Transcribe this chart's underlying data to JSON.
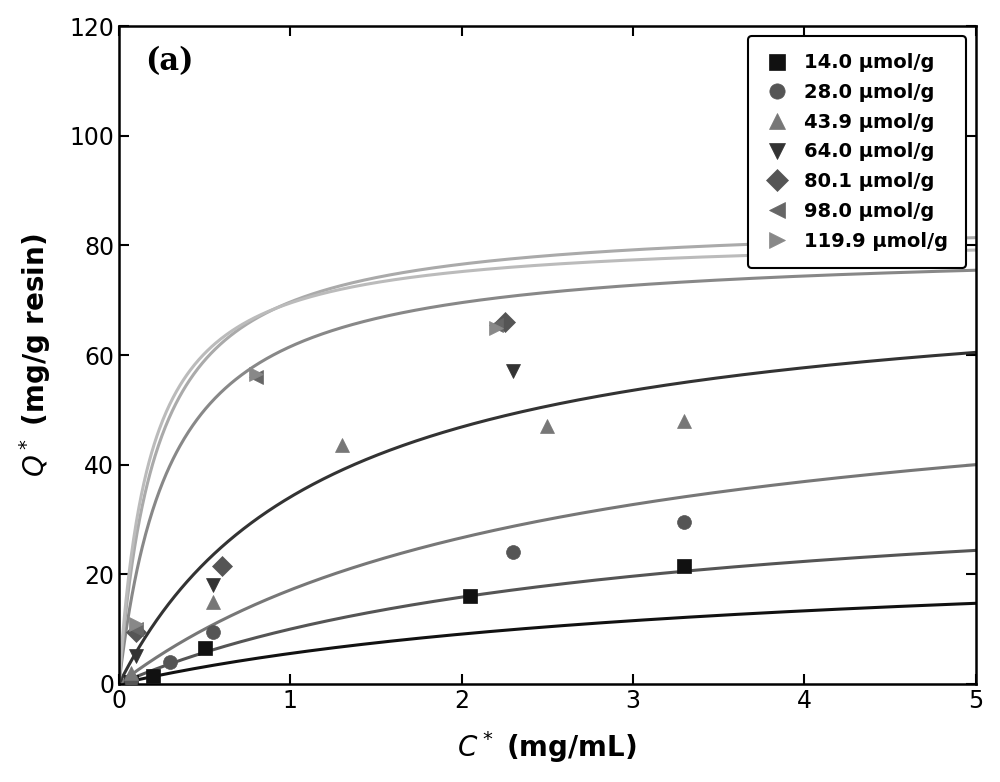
{
  "title": "(a)",
  "xlabel": "$C^*$ (mg/mL)",
  "ylabel": "$Q^*$ (mg/g resin)",
  "xlim": [
    0,
    5
  ],
  "ylim": [
    0,
    120
  ],
  "xticks": [
    0,
    1,
    2,
    3,
    4,
    5
  ],
  "yticks": [
    0,
    20,
    40,
    60,
    80,
    100,
    120
  ],
  "series": [
    {
      "label": "14.0 μmol/g",
      "marker": "s",
      "marker_color": "#111111",
      "line_color": "#111111",
      "Qmax": 25.0,
      "Kd": 3.5,
      "data_x": [
        0.07,
        0.2,
        0.5,
        2.05,
        3.3
      ],
      "data_y": [
        0.3,
        1.5,
        6.5,
        16.0,
        21.5
      ]
    },
    {
      "label": "28.0 μmol/g",
      "marker": "o",
      "marker_color": "#555555",
      "line_color": "#555555",
      "Qmax": 38.0,
      "Kd": 2.8,
      "data_x": [
        0.07,
        0.3,
        0.55,
        2.3,
        3.3
      ],
      "data_y": [
        0.8,
        4.0,
        9.5,
        24.0,
        29.5
      ]
    },
    {
      "label": "43.9 μmol/g",
      "marker": "^",
      "marker_color": "#777777",
      "line_color": "#777777",
      "Qmax": 60.0,
      "Kd": 2.5,
      "data_x": [
        0.07,
        0.55,
        1.3,
        2.5,
        3.3
      ],
      "data_y": [
        2.0,
        15.0,
        43.5,
        47.0,
        48.0
      ]
    },
    {
      "label": "64.0 μmol/g",
      "marker": "v",
      "marker_color": "#333333",
      "line_color": "#333333",
      "Qmax": 75.0,
      "Kd": 1.2,
      "data_x": [
        0.1,
        0.55,
        2.3
      ],
      "data_y": [
        5.0,
        18.0,
        57.0
      ]
    },
    {
      "label": "80.1 μmol/g",
      "marker": "D",
      "marker_color": "#555555",
      "line_color": "#888888",
      "Qmax": 80.0,
      "Kd": 0.3,
      "data_x": [
        0.1,
        0.6,
        2.25
      ],
      "data_y": [
        9.5,
        21.5,
        66.0
      ]
    },
    {
      "label": "98.0 μmol/g",
      "marker": "<",
      "marker_color": "#666666",
      "line_color": "#aaaaaa",
      "Qmax": 85.0,
      "Kd": 0.22,
      "data_x": [
        0.1,
        0.8,
        2.2
      ],
      "data_y": [
        10.0,
        56.0,
        65.5
      ]
    },
    {
      "label": "119.9 μmol/g",
      "marker": ">",
      "marker_color": "#888888",
      "line_color": "#bbbbbb",
      "Qmax": 82.0,
      "Kd": 0.18,
      "data_x": [
        0.1,
        0.8,
        2.2
      ],
      "data_y": [
        11.0,
        56.5,
        65.0
      ]
    }
  ]
}
